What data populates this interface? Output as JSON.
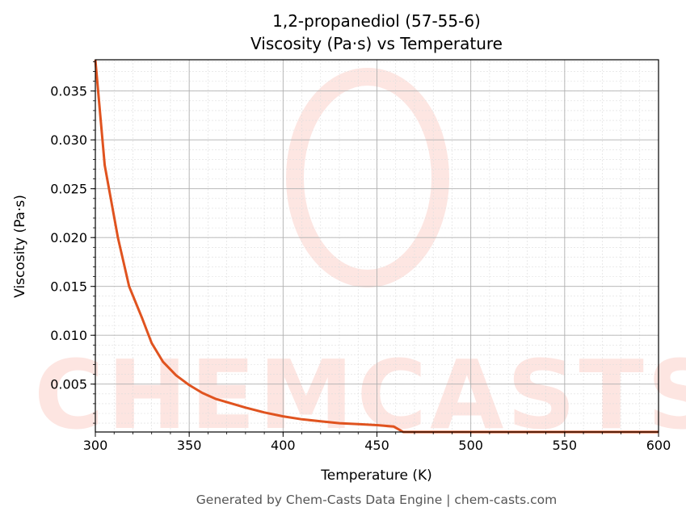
{
  "chart_data": {
    "type": "line",
    "title": "1,2-propanediol (57-55-6)",
    "subtitle": "Viscosity (Pa·s) vs Temperature",
    "xlabel": "Temperature (K)",
    "ylabel": "Viscosity (Pa·s)",
    "xlim": [
      300,
      600
    ],
    "ylim": [
      0.0001,
      0.0382
    ],
    "xticks": [
      300,
      350,
      400,
      450,
      500,
      550,
      600
    ],
    "xtick_labels": [
      "300",
      "350",
      "400",
      "450",
      "500",
      "550",
      "600"
    ],
    "yticks": [
      0.005,
      0.01,
      0.015,
      0.02,
      0.025,
      0.03,
      0.035
    ],
    "ytick_labels": [
      "0.005",
      "0.010",
      "0.015",
      "0.020",
      "0.025",
      "0.030",
      "0.035"
    ],
    "grid": true,
    "series": [
      {
        "name": "Viscosity",
        "color": "#e0531f",
        "x": [
          300,
          305,
          312,
          318,
          325,
          330,
          336,
          343,
          350,
          357,
          364,
          371,
          380,
          390,
          400,
          410,
          420,
          430,
          440,
          450,
          459,
          464,
          600
        ],
        "y": [
          0.0382,
          0.0274,
          0.02,
          0.015,
          0.0117,
          0.0092,
          0.0073,
          0.0059,
          0.0049,
          0.0041,
          0.0035,
          0.0031,
          0.0026,
          0.0021,
          0.0017,
          0.0014,
          0.0012,
          0.001,
          0.0009,
          0.0008,
          0.00065,
          0.0001,
          0.0001
        ]
      }
    ],
    "watermark": "CHEMCASTS"
  },
  "footer": "Generated by Chem-Casts Data Engine | chem-casts.com"
}
